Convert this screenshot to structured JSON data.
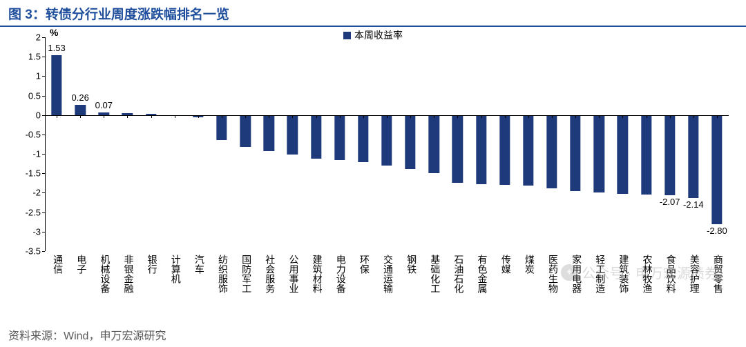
{
  "title": "图 3：转债分行业周度涨跌幅排名一览",
  "legend_label": "本周收益率",
  "y_unit": "%",
  "source": "资料来源：Wind，申万宏源研究",
  "watermark": "公众号 · 申万宏源债券",
  "chart": {
    "type": "bar",
    "ylim": [
      -3.5,
      2
    ],
    "ytick_step": 0.5,
    "bar_color": "#1f3a7a",
    "title_color": "#1f4e9c",
    "axis_color": "#000000",
    "background_color": "#ffffff",
    "bar_width_ratio": 0.45,
    "title_fontsize": 19,
    "tick_fontsize": 13,
    "label_fontsize": 14,
    "categories": [
      "通信",
      "电子",
      "机械设备",
      "非银金融",
      "银行",
      "计算机",
      "汽车",
      "纺织服饰",
      "国防军工",
      "社会服务",
      "公用事业",
      "建筑材料",
      "电力设备",
      "环保",
      "交通运输",
      "钢铁",
      "基础化工",
      "石油石化",
      "有色金属",
      "传媒",
      "煤炭",
      "医药生物",
      "家用电器",
      "轻工制造",
      "建筑装饰",
      "农林牧渔",
      "食品饮料",
      "美容护理",
      "商贸零售"
    ],
    "values": [
      1.53,
      0.26,
      0.07,
      0.05,
      0.03,
      -0.03,
      -0.05,
      -0.65,
      -0.82,
      -0.93,
      -1.02,
      -1.12,
      -1.15,
      -1.22,
      -1.3,
      -1.38,
      -1.5,
      -1.75,
      -1.78,
      -1.8,
      -1.82,
      -1.88,
      -1.95,
      -2.0,
      -2.03,
      -2.05,
      -2.07,
      -2.14,
      -2.8
    ],
    "value_labels": {
      "0": "1.53",
      "1": "0.26",
      "2": "0.07",
      "26": "-2.07",
      "27": "-2.14",
      "28": "-2.80"
    }
  }
}
